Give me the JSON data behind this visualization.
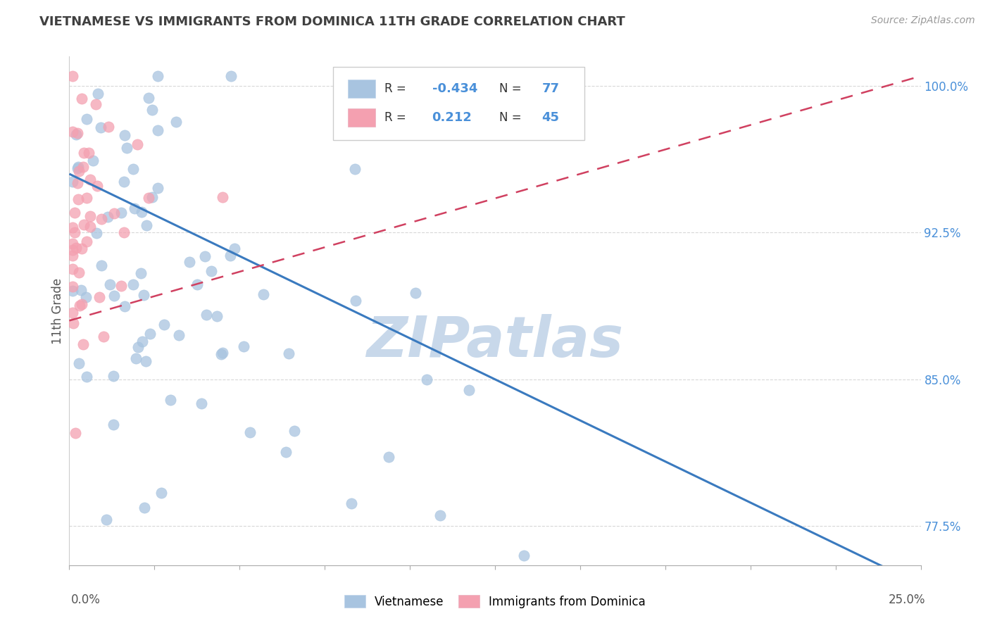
{
  "title": "VIETNAMESE VS IMMIGRANTS FROM DOMINICA 11TH GRADE CORRELATION CHART",
  "source": "Source: ZipAtlas.com",
  "ylabel": "11th Grade",
  "ylabel_ticks": [
    "77.5%",
    "85.0%",
    "92.5%",
    "100.0%"
  ],
  "ylabel_values": [
    0.775,
    0.85,
    0.925,
    1.0
  ],
  "xmin": 0.0,
  "xmax": 0.25,
  "ymin": 0.755,
  "ymax": 1.015,
  "r_vietnamese": -0.434,
  "n_vietnamese": 77,
  "r_dominica": 0.212,
  "n_dominica": 45,
  "color_vietnamese": "#a8c4e0",
  "color_dominica": "#f4a0b0",
  "trendline_vietnamese_color": "#3a7abf",
  "trendline_dominica_color": "#d04060",
  "watermark": "ZIPatlas",
  "watermark_color": "#c8d8ea",
  "background_color": "#ffffff",
  "title_color": "#404040",
  "source_color": "#999999",
  "right_tick_color": "#4a90d9",
  "grid_color": "#d8d8d8"
}
